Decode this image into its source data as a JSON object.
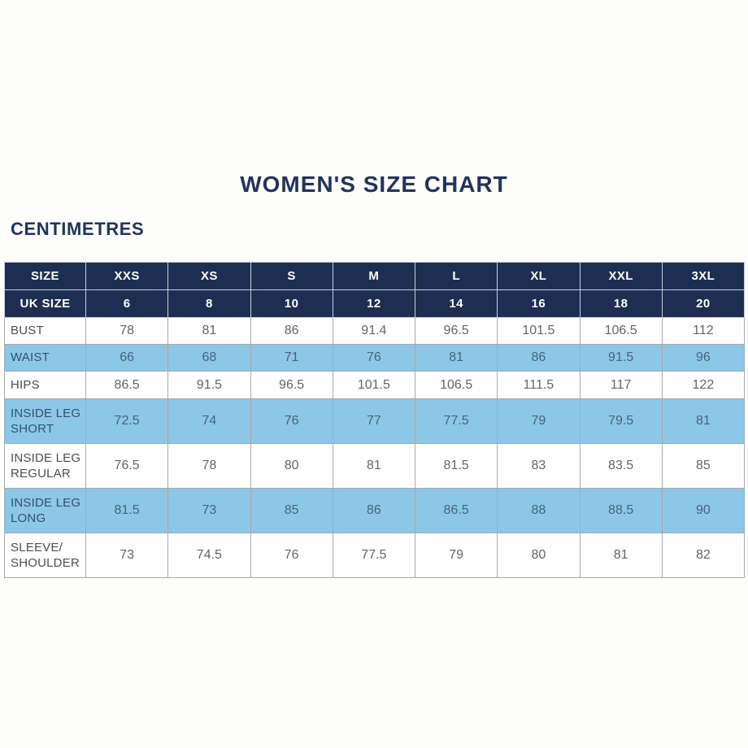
{
  "page": {
    "title": "WOMEN'S SIZE CHART",
    "unit_label": "CENTIMETRES"
  },
  "colors": {
    "navy_header": "#1e2e52",
    "stripe_blue": "#8cc7e8",
    "title_text": "#20345c",
    "header_text": "#ffffff",
    "body_text": "#626569"
  },
  "table": {
    "header_rows": [
      {
        "label": "SIZE",
        "values": [
          "XXS",
          "XS",
          "S",
          "M",
          "L",
          "XL",
          "XXL",
          "3XL"
        ]
      },
      {
        "label": "UK SIZE",
        "values": [
          "6",
          "8",
          "10",
          "12",
          "14",
          "16",
          "18",
          "20"
        ]
      }
    ],
    "rows": [
      {
        "label": "BUST",
        "values": [
          "78",
          "81",
          "86",
          "91.4",
          "96.5",
          "101.5",
          "106.5",
          "112"
        ]
      },
      {
        "label": "WAIST",
        "values": [
          "66",
          "68",
          "71",
          "76",
          "81",
          "86",
          "91.5",
          "96"
        ]
      },
      {
        "label": "HIPS",
        "values": [
          "86.5",
          "91.5",
          "96.5",
          "101.5",
          "106.5",
          "111.5",
          "117",
          "122"
        ]
      },
      {
        "label": [
          "INSIDE LEG",
          "SHORT"
        ],
        "values": [
          "72.5",
          "74",
          "76",
          "77",
          "77.5",
          "79",
          "79.5",
          "81"
        ]
      },
      {
        "label": [
          "INSIDE LEG",
          "REGULAR"
        ],
        "values": [
          "76.5",
          "78",
          "80",
          "81",
          "81.5",
          "83",
          "83.5",
          "85"
        ]
      },
      {
        "label": [
          "INSIDE LEG",
          "LONG"
        ],
        "values": [
          "81.5",
          "73",
          "85",
          "86",
          "86.5",
          "88",
          "88.5",
          "90"
        ]
      },
      {
        "label": [
          "SLEEVE/",
          "SHOULDER"
        ],
        "values": [
          "73",
          "74.5",
          "76",
          "77.5",
          "79",
          "80",
          "81",
          "82"
        ]
      }
    ]
  }
}
